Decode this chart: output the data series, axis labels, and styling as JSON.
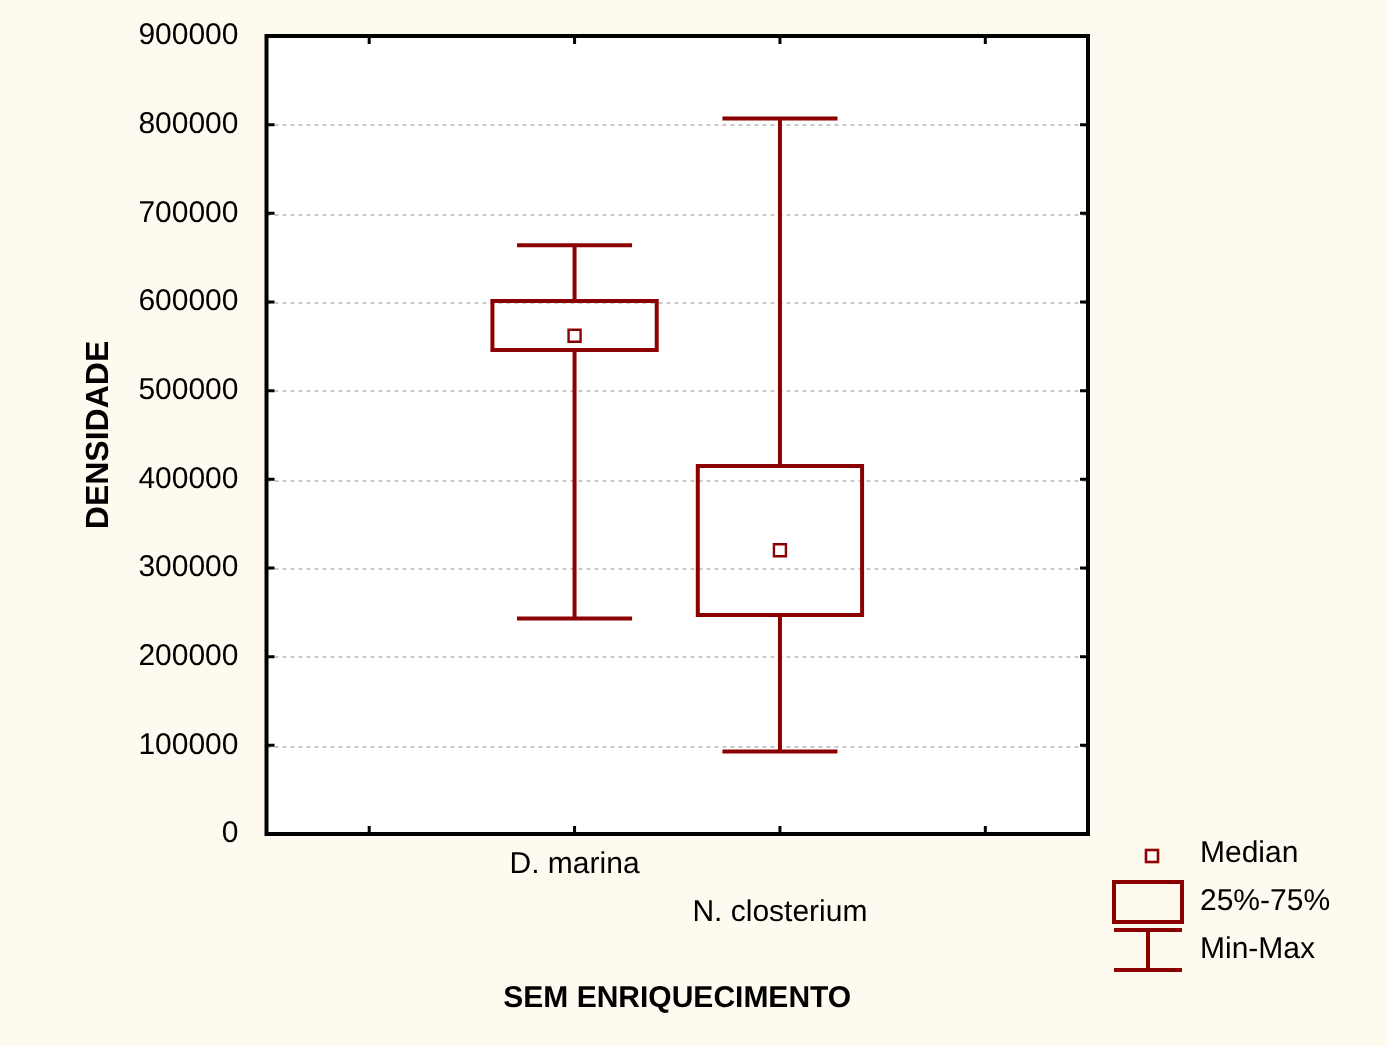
{
  "chart_data": {
    "type": "box",
    "xlabel": "SEM ENRIQUECIMENTO",
    "ylabel": "DENSIDADE",
    "categories": [
      "D. marina",
      "N. closterium"
    ],
    "series": [
      {
        "color": "#8b0000",
        "boxes": [
          {
            "low": 243000,
            "q1": 546000,
            "median": 562000,
            "q3": 601000,
            "high": 664000
          },
          {
            "low": 93000,
            "q1": 247000,
            "median": 320000,
            "q3": 415000,
            "high": 807000
          }
        ]
      }
    ],
    "ylim": [
      0,
      900000
    ],
    "yticks": [
      0,
      100000,
      200000,
      300000,
      400000,
      500000,
      600000,
      700000,
      800000,
      900000
    ],
    "grid": "y",
    "annotations": [
      "Median",
      "25%-75%",
      "Min-Max"
    ]
  }
}
